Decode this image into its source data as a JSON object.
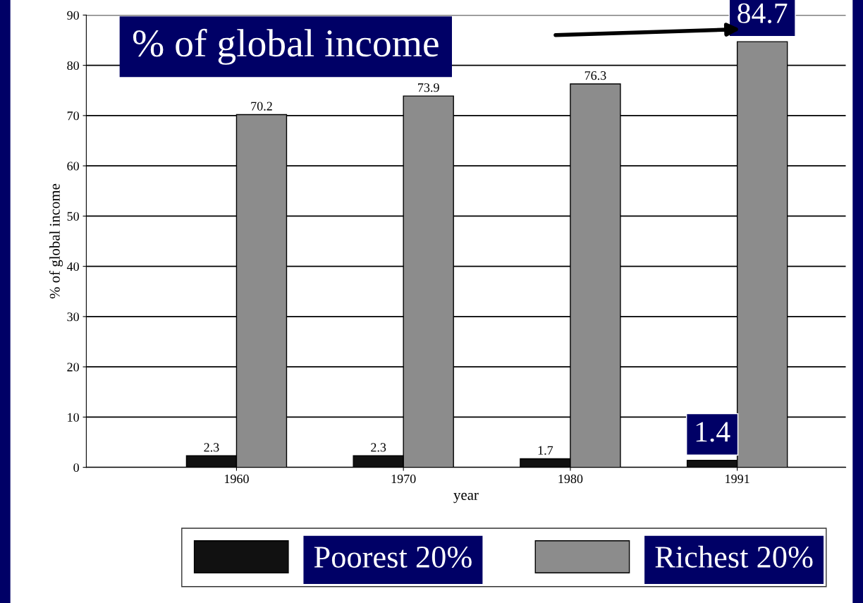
{
  "chart_data": {
    "type": "bar",
    "title": "% of global income",
    "xlabel": "year",
    "ylabel": "% of global income",
    "categories": [
      "1960",
      "1970",
      "1980",
      "1991"
    ],
    "series": [
      {
        "name": "Poorest 20%",
        "color": "#111111",
        "values": [
          2.3,
          2.3,
          1.7,
          1.4
        ]
      },
      {
        "name": "Richest 20%",
        "color": "#8c8c8c",
        "values": [
          70.2,
          73.9,
          76.3,
          84.7
        ]
      }
    ],
    "ylim": [
      0,
      90
    ],
    "yticks": [
      0,
      10,
      20,
      30,
      40,
      50,
      60,
      70,
      80,
      90
    ],
    "grid": "y",
    "legend": "bottom",
    "data_labels": true
  }
}
